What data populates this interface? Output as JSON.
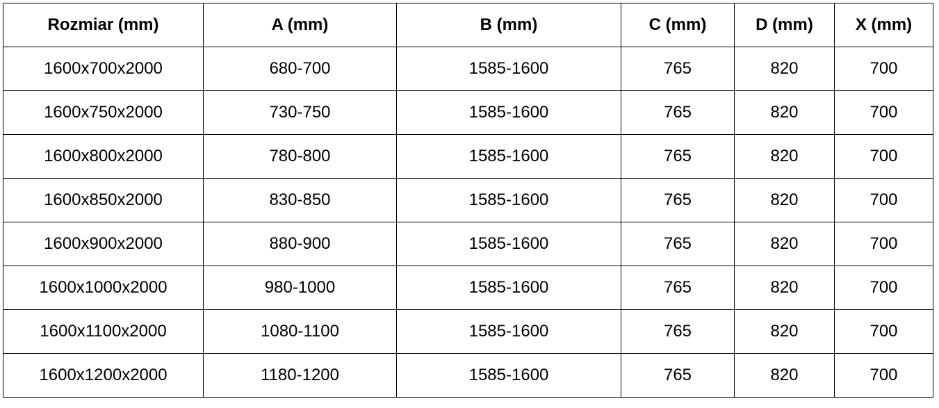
{
  "table": {
    "headers": [
      "Rozmiar (mm)",
      "A (mm)",
      "B (mm)",
      "C (mm)",
      "D (mm)",
      "X (mm)"
    ],
    "rows": [
      [
        "1600x700x2000",
        "680-700",
        "1585-1600",
        "765",
        "820",
        "700"
      ],
      [
        "1600x750x2000",
        "730-750",
        "1585-1600",
        "765",
        "820",
        "700"
      ],
      [
        "1600x800x2000",
        "780-800",
        "1585-1600",
        "765",
        "820",
        "700"
      ],
      [
        "1600x850x2000",
        "830-850",
        "1585-1600",
        "765",
        "820",
        "700"
      ],
      [
        "1600x900x2000",
        "880-900",
        "1585-1600",
        "765",
        "820",
        "700"
      ],
      [
        "1600x1000x2000",
        "980-1000",
        "1585-1600",
        "765",
        "820",
        "700"
      ],
      [
        "1600x1100x2000",
        "1080-1100",
        "1585-1600",
        "765",
        "820",
        "700"
      ],
      [
        "1600x1200x2000",
        "1180-1200",
        "1585-1600",
        "765",
        "820",
        "700"
      ]
    ]
  }
}
